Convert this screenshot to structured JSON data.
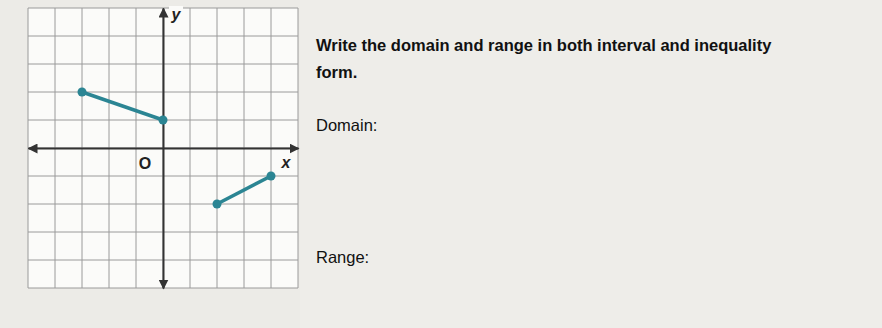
{
  "chart_data": {
    "type": "line",
    "x_label": "x",
    "y_label": "y",
    "origin_label": "O",
    "xlim": [
      -5,
      5
    ],
    "ylim": [
      -5,
      5
    ],
    "xticks": [
      -5,
      -4,
      -3,
      -2,
      -1,
      0,
      1,
      2,
      3,
      4,
      5
    ],
    "yticks": [
      -5,
      -4,
      -3,
      -2,
      -1,
      0,
      1,
      2,
      3,
      4,
      5
    ],
    "grid": true,
    "tick_labels": false,
    "marker": "circle",
    "line_style": "solid",
    "series": [
      {
        "color": "#2b8593",
        "x": [
          -3,
          0
        ],
        "values": [
          2,
          1
        ]
      },
      {
        "color": "#2b8593",
        "x": [
          2,
          4
        ],
        "values": [
          -2,
          -1
        ]
      }
    ]
  },
  "prompt": {
    "instruction_lines": [
      "Write the domain and range in both interval and inequality",
      "form."
    ],
    "domain_label": "Domain:",
    "range_label": "Range:"
  }
}
